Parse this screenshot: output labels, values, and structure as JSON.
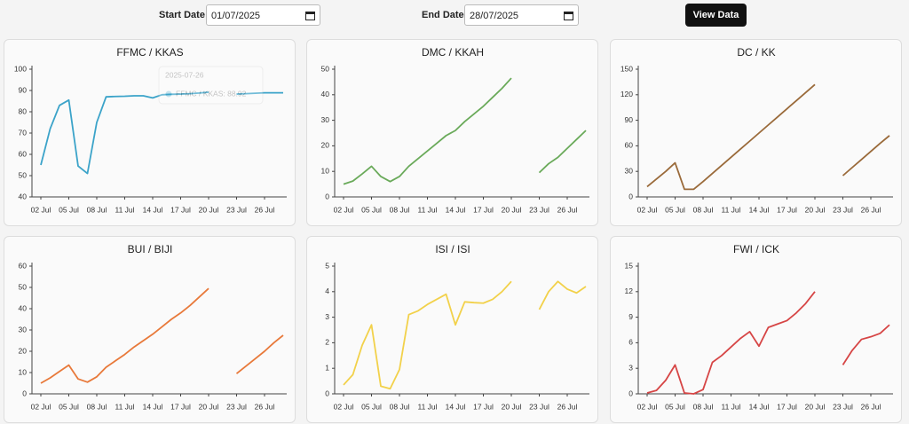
{
  "controls": {
    "start_label": "Start Date",
    "start_value": "01/07/2025",
    "end_label": "End Date",
    "end_value": "28/07/2025",
    "button": "View Data"
  },
  "chart_data": [
    {
      "type": "line",
      "title": "FFMC / KKAS",
      "color": "#3ba3c9",
      "categories": [
        "02 Jul",
        null,
        null,
        "05 Jul",
        null,
        null,
        "08 Jul",
        null,
        null,
        "11 Jul",
        null,
        null,
        "14 Jul",
        null,
        null,
        "17 Jul",
        null,
        null,
        "20 Jul",
        null,
        null,
        "23 Jul",
        null,
        null,
        "26 Jul",
        null,
        null
      ],
      "values": [
        55,
        72,
        83,
        85.5,
        54.5,
        51,
        75,
        87,
        87.2,
        87.3,
        87.5,
        87.5,
        86.5,
        88,
        88.2,
        88.3,
        88.5,
        88.8,
        89.2,
        null,
        null,
        88.3,
        88.5,
        88.7,
        88.92,
        88.9,
        88.9
      ],
      "ylim": [
        40,
        100
      ],
      "yticks": [
        40,
        50,
        60,
        70,
        80,
        90,
        100
      ],
      "tooltip": {
        "date": "2025-07-26",
        "text": "FFMC / KKAS: 88.92"
      }
    },
    {
      "type": "line",
      "title": "DMC / KKAH",
      "color": "#6aaa5a",
      "categories": [
        "02 Jul",
        null,
        null,
        "05 Jul",
        null,
        null,
        "08 Jul",
        null,
        null,
        "11 Jul",
        null,
        null,
        "14 Jul",
        null,
        null,
        "17 Jul",
        null,
        null,
        "20 Jul",
        null,
        null,
        "23 Jul",
        null,
        null,
        "26 Jul",
        null,
        null
      ],
      "values": [
        5,
        6.2,
        9,
        12,
        8,
        6,
        8,
        12,
        15,
        18,
        21,
        24,
        26,
        29.5,
        32.5,
        35.5,
        39,
        42.5,
        46.5,
        null,
        null,
        9.5,
        13,
        15.5,
        19,
        22.5,
        26
      ],
      "ylim": [
        0,
        50
      ],
      "yticks": [
        0,
        10,
        20,
        30,
        40,
        50
      ]
    },
    {
      "type": "line",
      "title": "DC / KK",
      "color": "#9a6a3a",
      "categories": [
        "02 Jul",
        null,
        null,
        "05 Jul",
        null,
        null,
        "08 Jul",
        null,
        null,
        "11 Jul",
        null,
        null,
        "14 Jul",
        null,
        null,
        "17 Jul",
        null,
        null,
        "20 Jul",
        null,
        null,
        "23 Jul",
        null,
        null,
        "26 Jul",
        null,
        null
      ],
      "values": [
        12,
        21,
        30,
        40,
        9,
        9,
        18,
        27.5,
        37,
        46.5,
        56,
        65.5,
        75,
        84.5,
        94,
        103.5,
        113,
        122.5,
        132,
        null,
        null,
        25,
        34.5,
        44,
        53.5,
        63,
        72
      ],
      "ylim": [
        0,
        150
      ],
      "yticks": [
        0,
        30,
        60,
        90,
        120,
        150
      ]
    },
    {
      "type": "line",
      "title": "BUI / BIJI",
      "color": "#e8793a",
      "categories": [
        "02 Jul",
        null,
        null,
        "05 Jul",
        null,
        null,
        "08 Jul",
        null,
        null,
        "11 Jul",
        null,
        null,
        "14 Jul",
        null,
        null,
        "17 Jul",
        null,
        null,
        "20 Jul",
        null,
        null,
        "23 Jul",
        null,
        null,
        "26 Jul",
        null,
        null
      ],
      "values": [
        5,
        7.5,
        10.5,
        13.5,
        7,
        5.5,
        8,
        12.5,
        15.5,
        18.5,
        22,
        25,
        28,
        31.5,
        35,
        38,
        41.5,
        45.5,
        49.5,
        null,
        null,
        9.5,
        13,
        16.5,
        20,
        24,
        27.5
      ],
      "ylim": [
        0,
        60
      ],
      "yticks": [
        0,
        10,
        20,
        30,
        40,
        50,
        60
      ]
    },
    {
      "type": "line",
      "title": "ISI / ISI",
      "color": "#f2d14a",
      "categories": [
        "02 Jul",
        null,
        null,
        "05 Jul",
        null,
        null,
        "08 Jul",
        null,
        null,
        "11 Jul",
        null,
        null,
        "14 Jul",
        null,
        null,
        "17 Jul",
        null,
        null,
        "20 Jul",
        null,
        null,
        "23 Jul",
        null,
        null,
        "26 Jul",
        null,
        null
      ],
      "values": [
        0.35,
        0.75,
        1.9,
        2.7,
        0.3,
        0.2,
        0.95,
        3.1,
        3.25,
        3.5,
        3.7,
        3.9,
        2.7,
        3.6,
        3.57,
        3.55,
        3.7,
        4.0,
        4.4,
        null,
        null,
        3.3,
        4.0,
        4.4,
        4.1,
        3.95,
        4.2
      ],
      "ylim": [
        0,
        5
      ],
      "yticks": [
        0,
        1,
        2,
        3,
        4,
        5
      ]
    },
    {
      "type": "line",
      "title": "FWI / ICK",
      "color": "#d64545",
      "categories": [
        "02 Jul",
        null,
        null,
        "05 Jul",
        null,
        null,
        "08 Jul",
        null,
        null,
        "11 Jul",
        null,
        null,
        "14 Jul",
        null,
        null,
        "17 Jul",
        null,
        null,
        "20 Jul",
        null,
        null,
        "23 Jul",
        null,
        null,
        "26 Jul",
        null,
        null
      ],
      "values": [
        0.1,
        0.4,
        1.6,
        3.4,
        0.1,
        0,
        0.5,
        3.7,
        4.5,
        5.5,
        6.5,
        7.3,
        5.6,
        7.8,
        8.2,
        8.6,
        9.5,
        10.6,
        12,
        null,
        null,
        3.4,
        5.1,
        6.4,
        6.7,
        7.1,
        8.1
      ],
      "ylim": [
        0,
        15
      ],
      "yticks": [
        0,
        3,
        6,
        9,
        12,
        15
      ]
    }
  ]
}
